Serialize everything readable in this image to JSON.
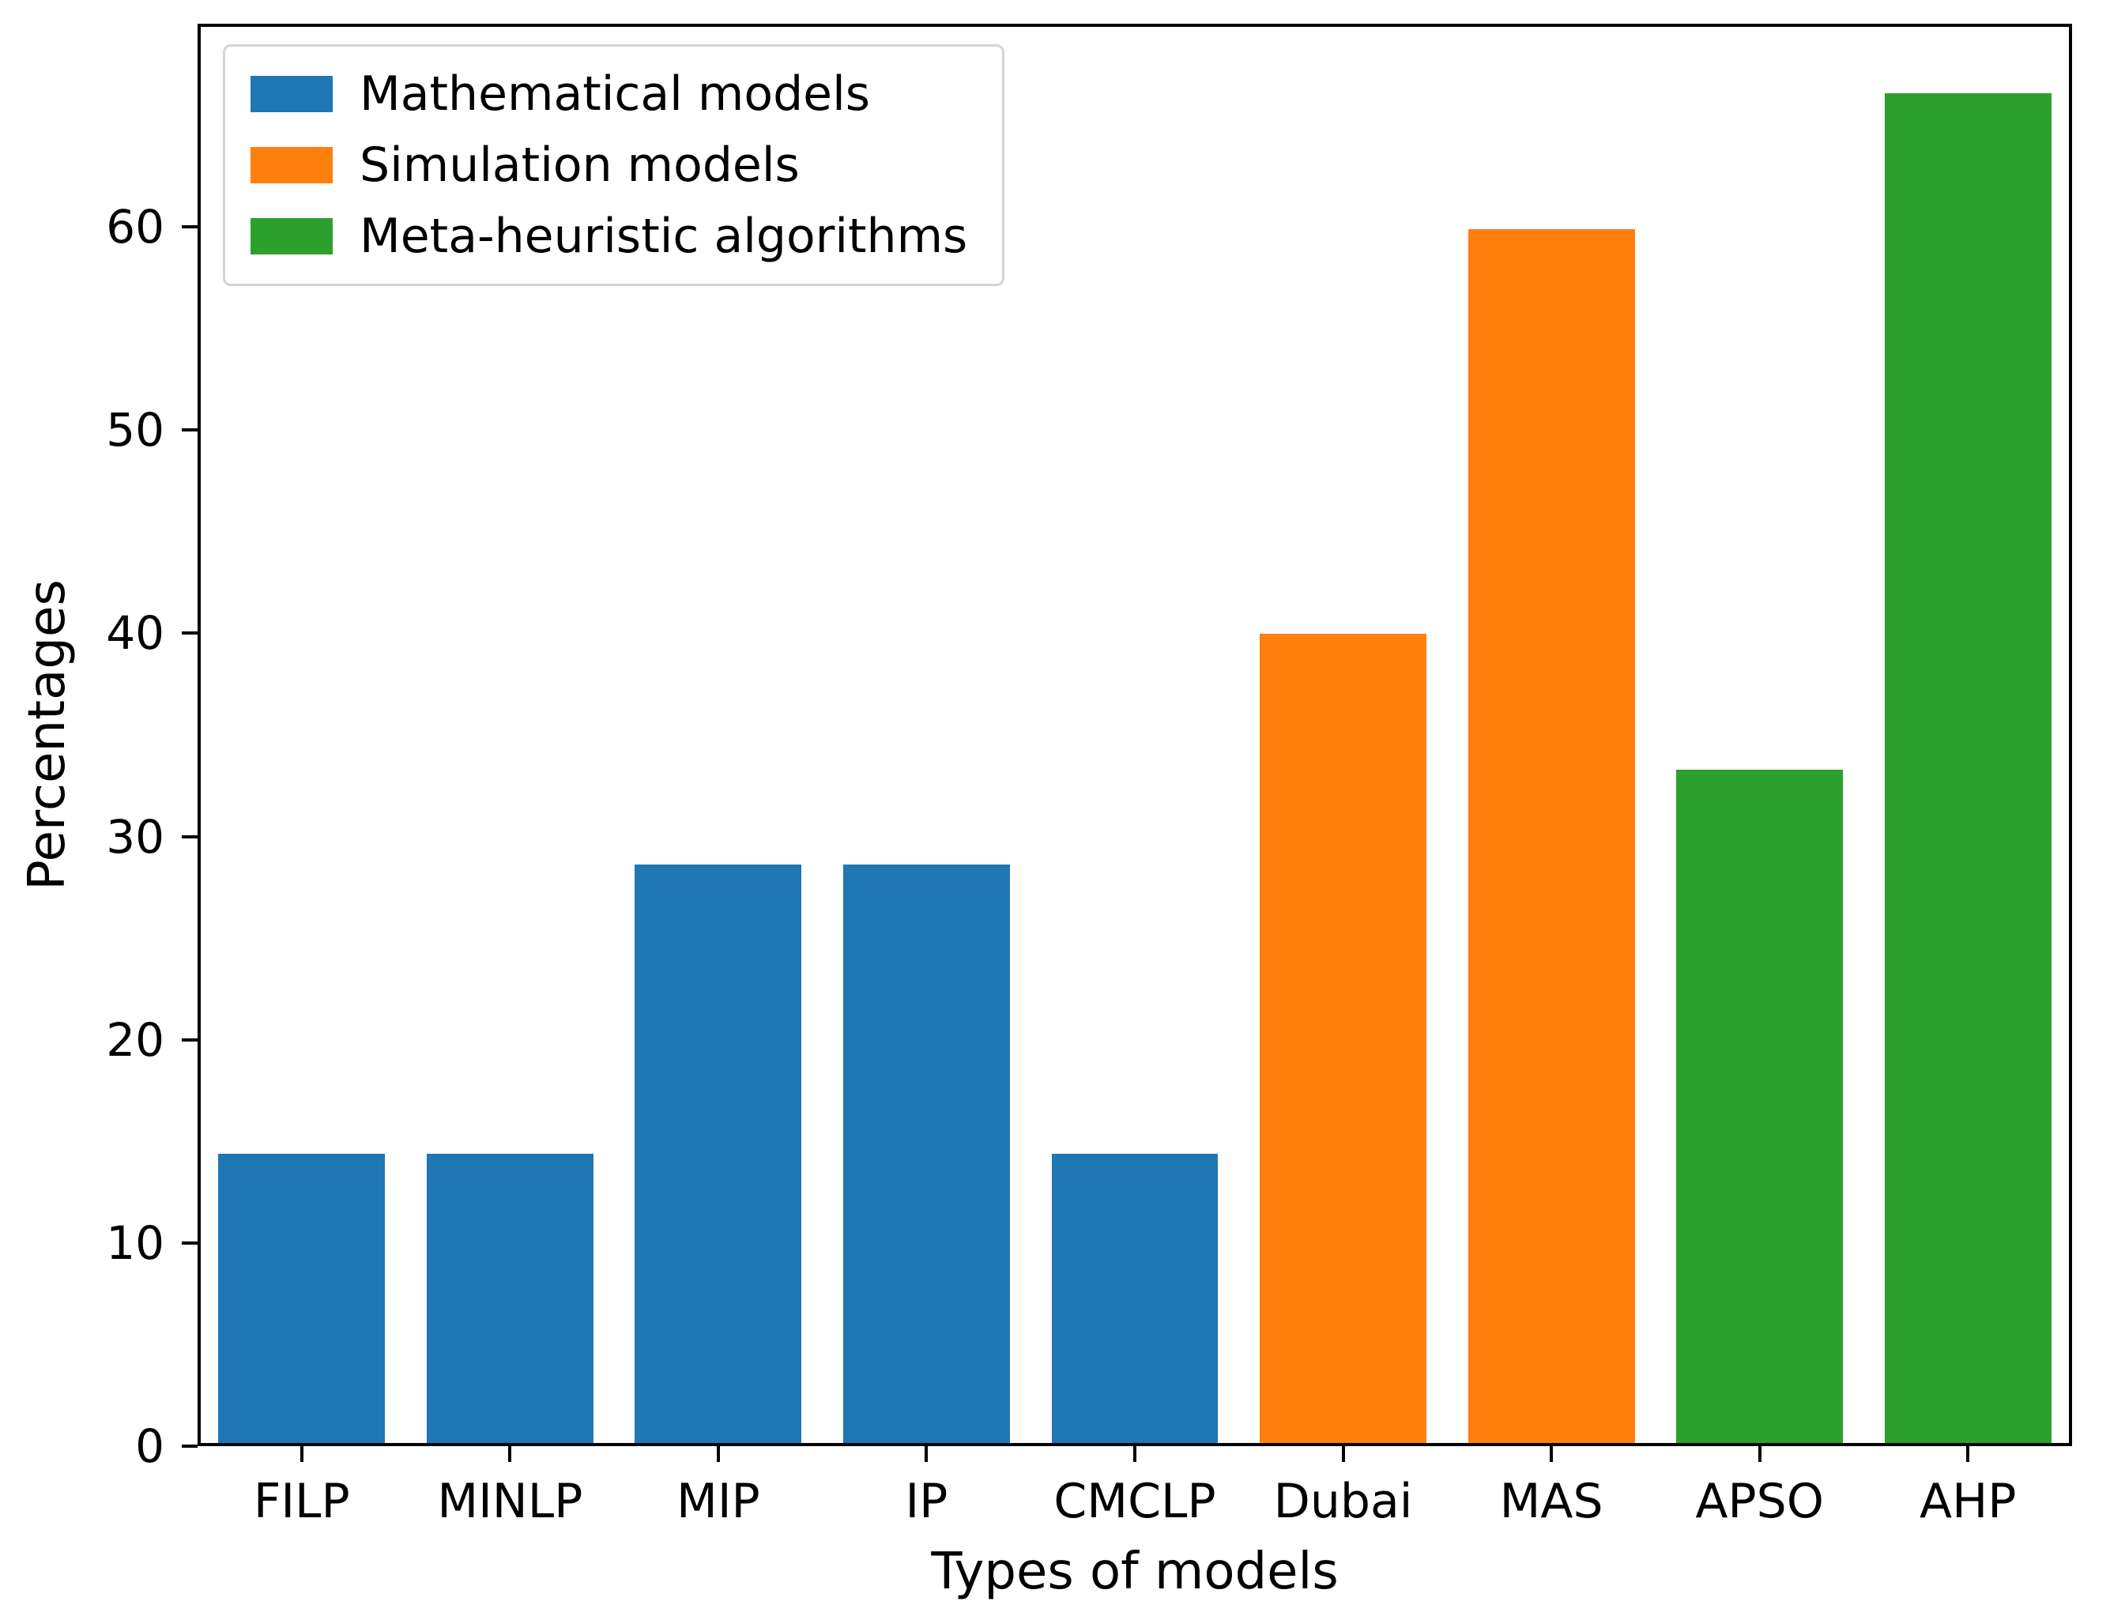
{
  "chart_data": {
    "type": "bar",
    "title": "",
    "xlabel": "Types of models",
    "ylabel": "Percentages",
    "categories": [
      "FILP",
      "MINLP",
      "MIP",
      "IP",
      "CMCLP",
      "Dubai",
      "MAS",
      "APSO",
      "AHP"
    ],
    "values": [
      14.3,
      14.3,
      28.6,
      28.6,
      14.3,
      40,
      60,
      33.3,
      66.7
    ],
    "bar_series": [
      0,
      0,
      0,
      0,
      0,
      1,
      1,
      2,
      2
    ],
    "series": [
      {
        "name": "Mathematical models",
        "color": "#1f77b4"
      },
      {
        "name": "Simulation models",
        "color": "#ff7f0e"
      },
      {
        "name": "Meta-heuristic algorithms",
        "color": "#2ca02c"
      }
    ],
    "ylim": [
      0,
      70
    ],
    "yticks": [
      0,
      10,
      20,
      30,
      40,
      50,
      60
    ],
    "legend_position": "upper left",
    "grid": false
  }
}
